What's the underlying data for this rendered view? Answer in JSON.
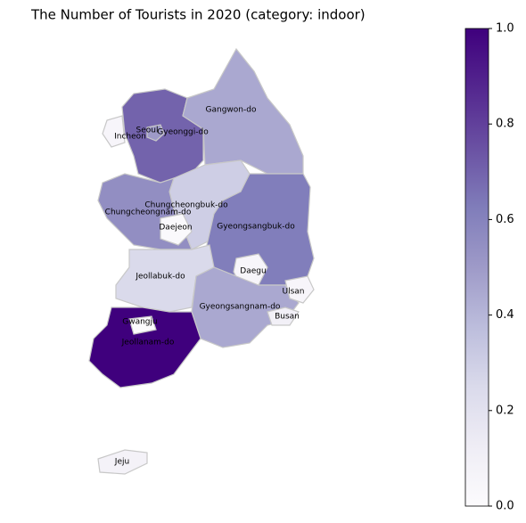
{
  "chart_data": {
    "type": "choropleth",
    "title": "The Number of Tourists in 2020 (category: indoor)",
    "regions": [
      "Gyeonggi-do",
      "Seoul",
      "Incheon",
      "Gangwon-do",
      "Chungcheongbuk-do",
      "Chungcheongnam-do",
      "Daejeon",
      "Gyeongsangbuk-do",
      "Daegu",
      "Jeollabuk-do",
      "Gyeongsangnam-do",
      "Ulsan",
      "Busan",
      "Jeollanam-do",
      "Gwangju",
      "Jeju"
    ],
    "values": [
      0.7,
      0.5,
      0.05,
      0.45,
      0.3,
      0.55,
      0.02,
      0.62,
      0.05,
      0.25,
      0.45,
      0.05,
      0.1,
      1.0,
      0,
      0.08
    ],
    "colormap": [
      "#fcfbfd",
      "#efedf5",
      "#dadaeb",
      "#bcbddc",
      "#9e9ac8",
      "#807dba",
      "#6a51a3",
      "#54278f",
      "#3f007d"
    ],
    "clim": [
      0,
      1
    ],
    "cticks": [
      {
        "value": 0,
        "label": "0.0"
      },
      {
        "value": 0.2,
        "label": "0.2"
      },
      {
        "value": 0.4,
        "label": "0.4"
      },
      {
        "value": 0.6,
        "label": "0.6"
      },
      {
        "value": 0.8,
        "label": "0.8"
      },
      {
        "value": 1,
        "label": "1.0"
      }
    ]
  }
}
